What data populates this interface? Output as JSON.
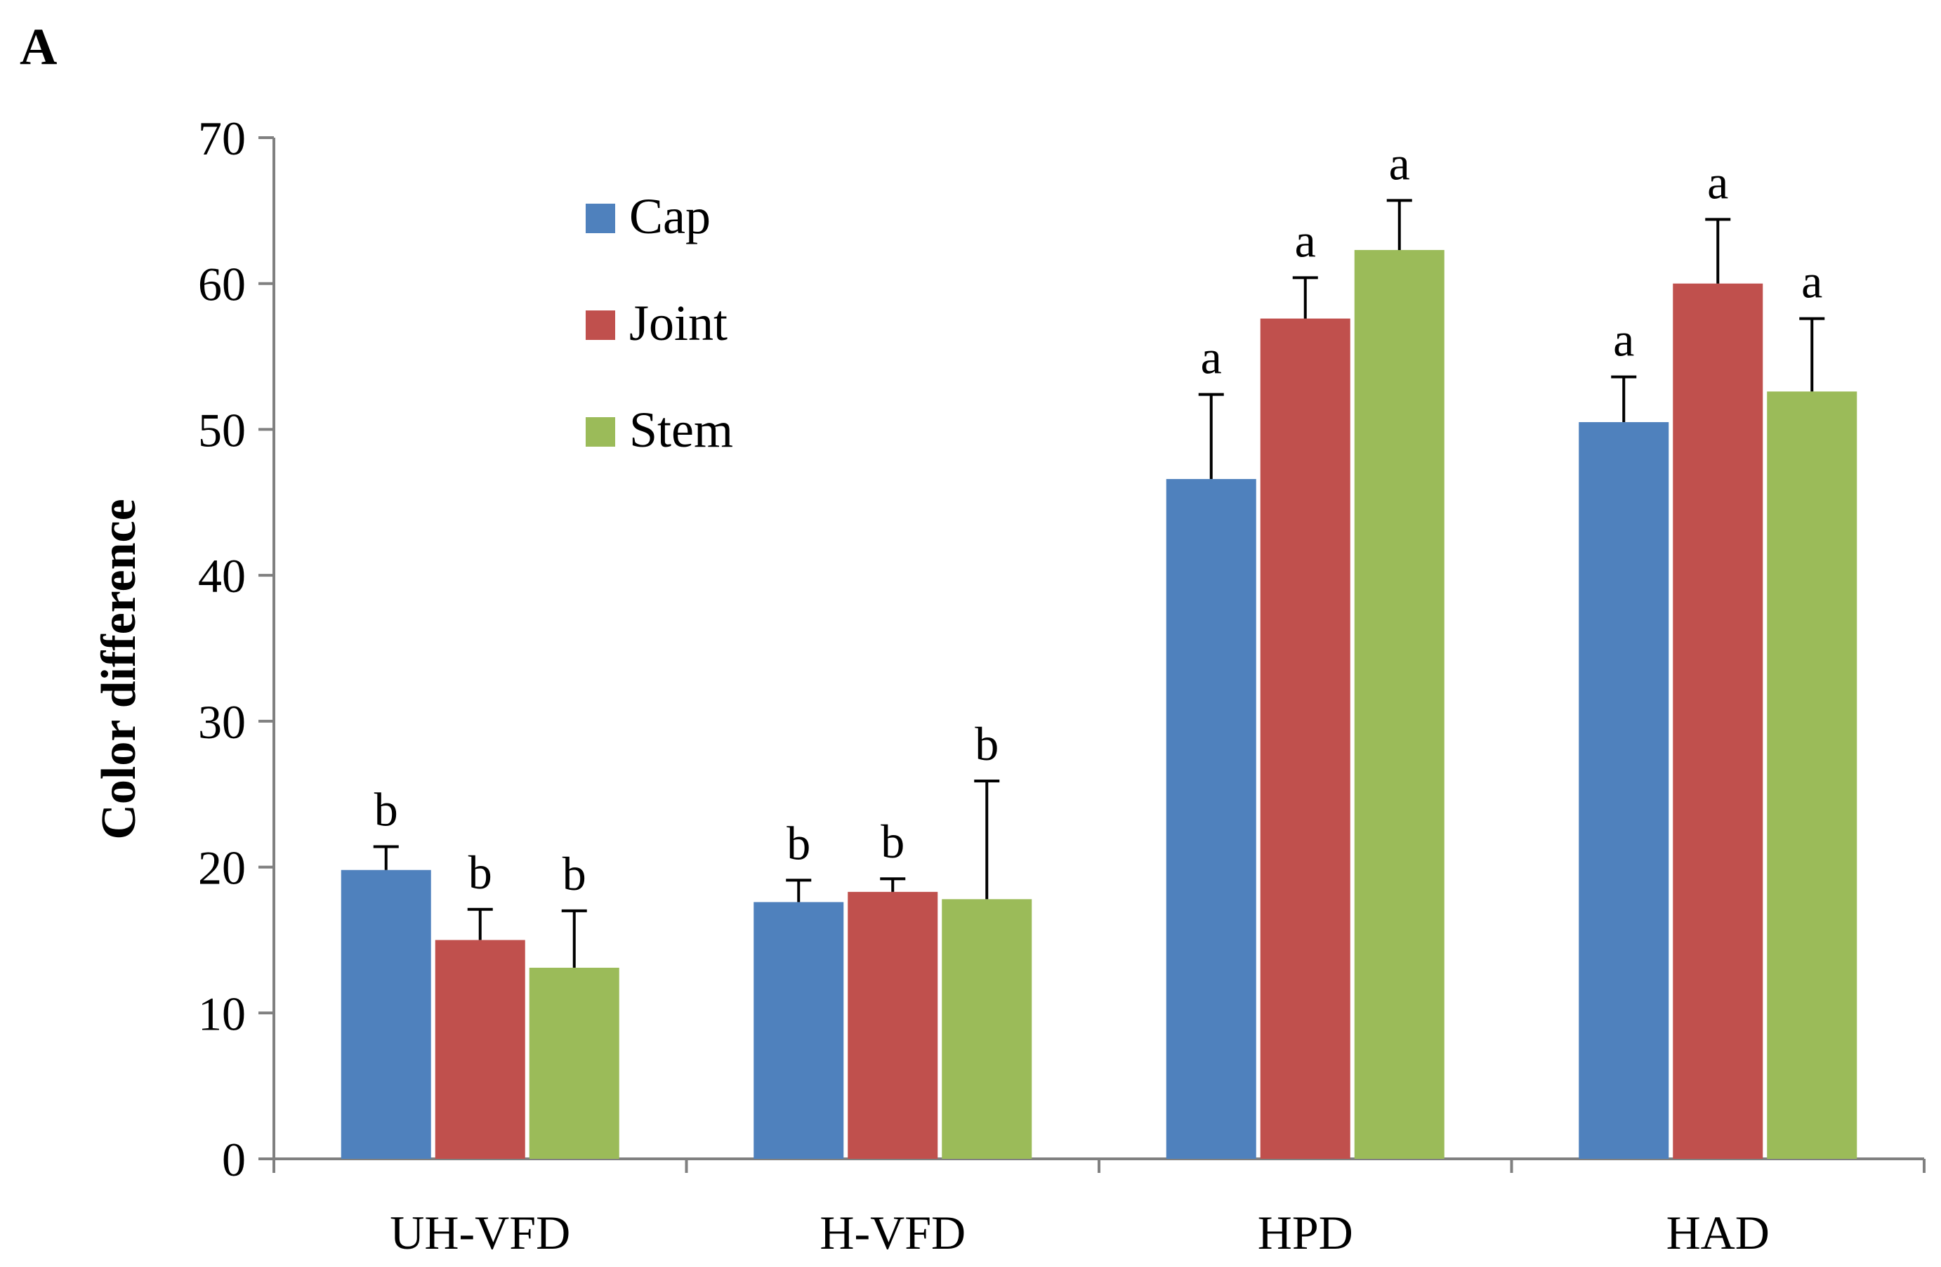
{
  "panel_label": "A",
  "colors": {
    "Cap": "#4F81BD",
    "Joint": "#C0504D",
    "Stem": "#9BBB59",
    "axis": "#808080",
    "error": "#000000"
  },
  "chart_data": {
    "type": "bar",
    "title": "",
    "xlabel": "",
    "ylabel": "Color difference",
    "ylim": [
      0,
      70
    ],
    "yticks": [
      0,
      10,
      20,
      30,
      40,
      50,
      60,
      70
    ],
    "grid": false,
    "legend_position": "top-left",
    "categories": [
      "UH-VFD",
      "H-VFD",
      "HPD",
      "HAD"
    ],
    "series": [
      {
        "name": "Cap",
        "values": [
          19.8,
          17.6,
          46.6,
          50.5
        ],
        "errors": [
          1.6,
          1.5,
          5.8,
          3.1
        ],
        "letters": [
          "b",
          "b",
          "a",
          "a"
        ]
      },
      {
        "name": "Joint",
        "values": [
          15.0,
          18.3,
          57.6,
          60.0
        ],
        "errors": [
          2.1,
          0.9,
          2.8,
          4.4
        ],
        "letters": [
          "b",
          "b",
          "a",
          "a"
        ]
      },
      {
        "name": "Stem",
        "values": [
          13.1,
          17.8,
          62.3,
          52.6
        ],
        "errors": [
          3.9,
          8.1,
          3.4,
          5.0
        ],
        "letters": [
          "b",
          "b",
          "a",
          "a"
        ]
      }
    ]
  }
}
